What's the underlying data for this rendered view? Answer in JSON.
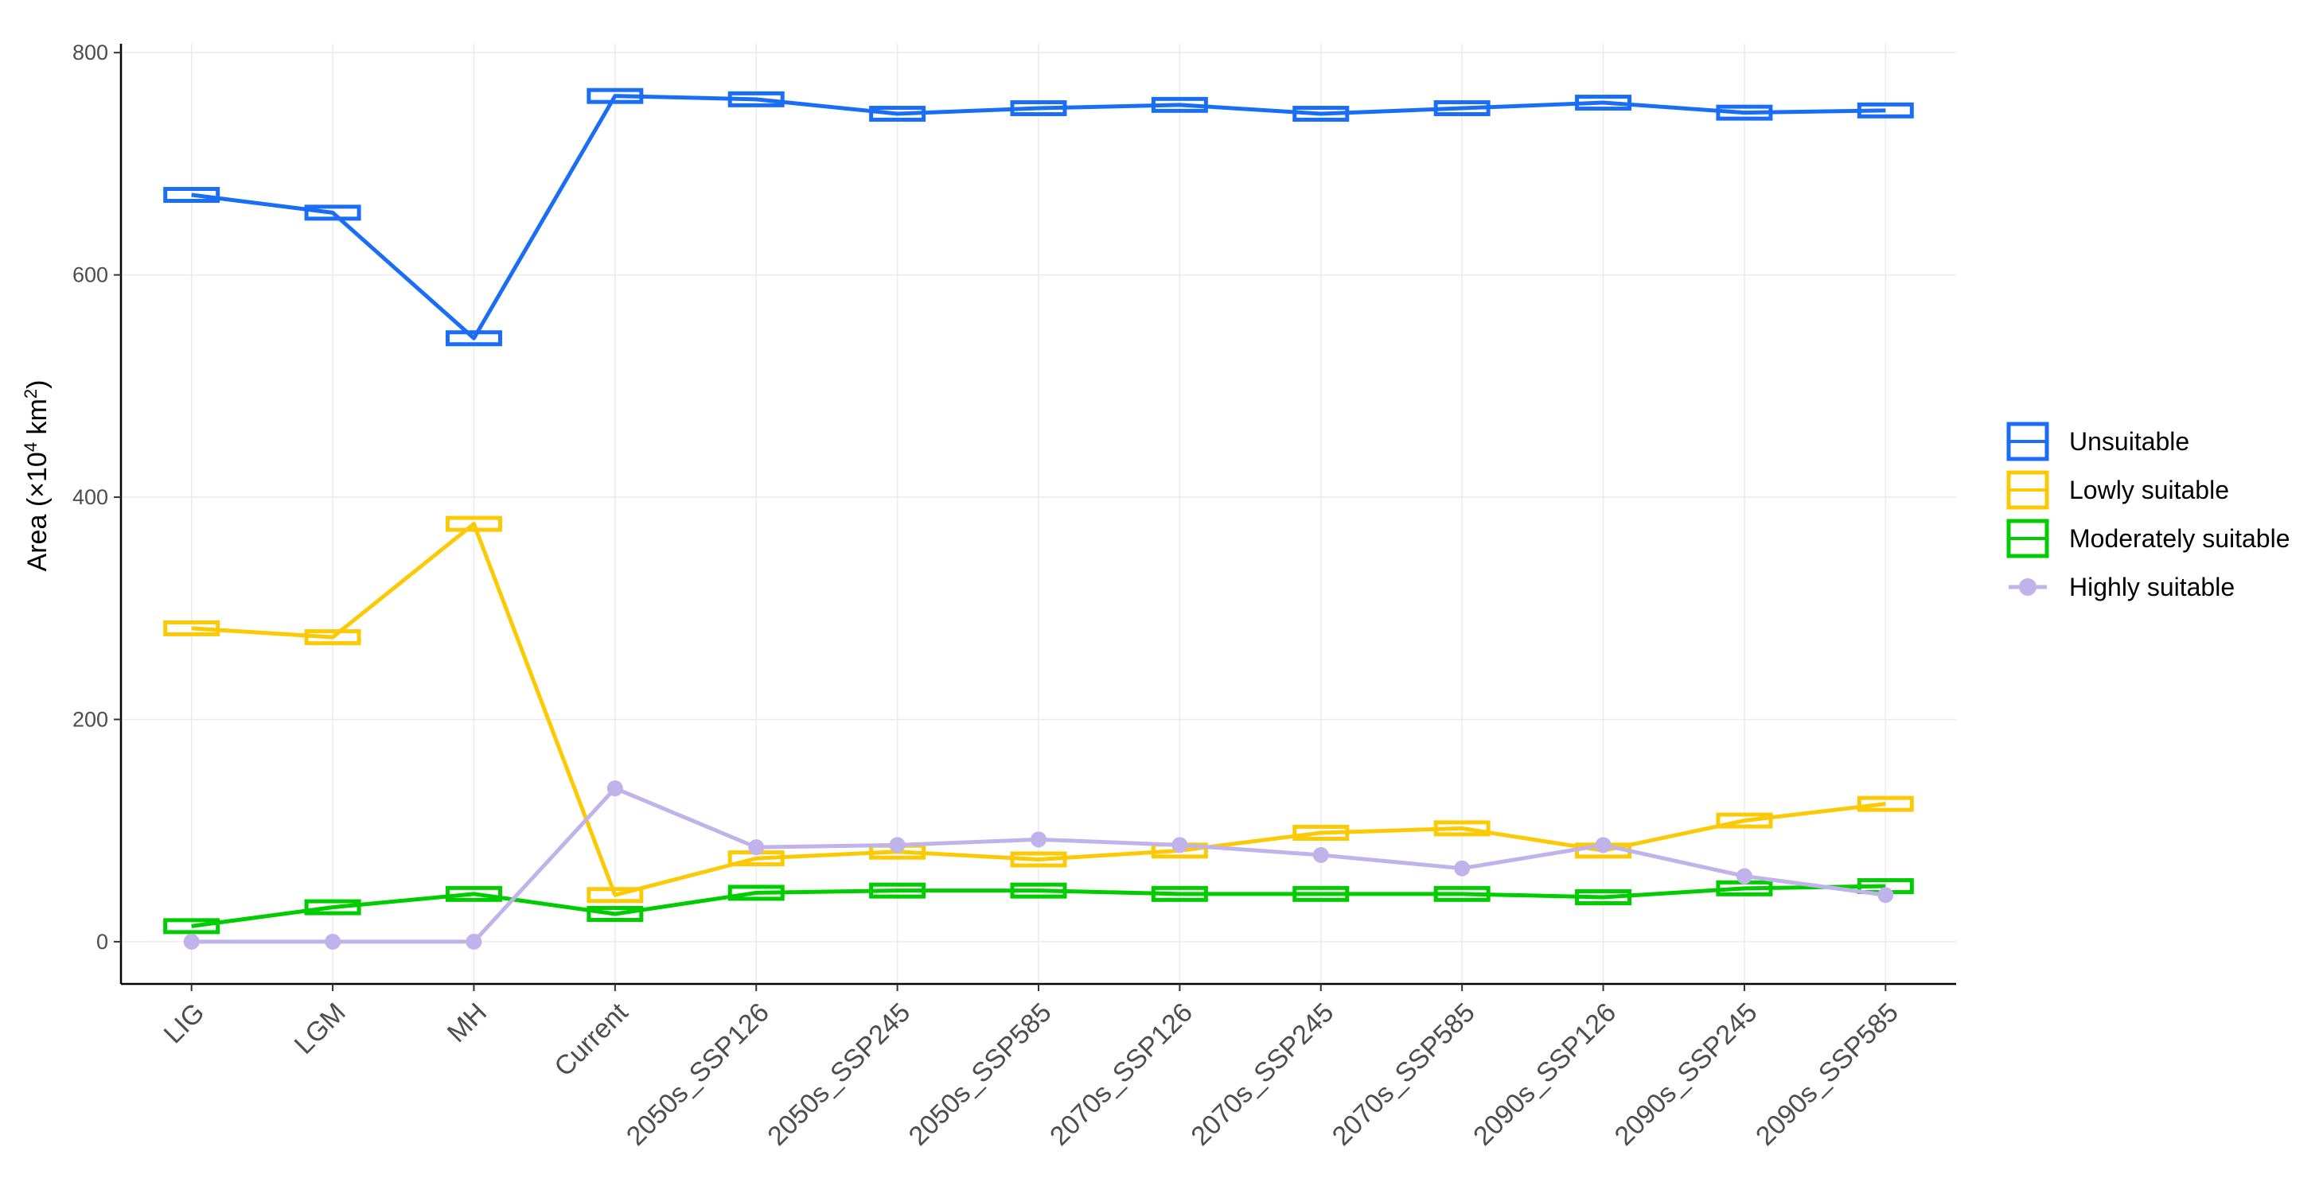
{
  "chart_data": {
    "type": "line",
    "categories": [
      "LIG",
      "LGM",
      "MH",
      "Current",
      "2050s_SSP126",
      "2050s_SSP245",
      "2050s_SSP585",
      "2070s_SSP126",
      "2070s_SSP245",
      "2070s_SSP585",
      "2090s_SSP126",
      "2090s_SSP245",
      "2090s_SSP585"
    ],
    "ylabel": {
      "prefix": "Area (×10",
      "exp1": "4",
      "unit": " km",
      "exp2": "2",
      "suffix": ")"
    },
    "ylim": [
      -38,
      808
    ],
    "yticks": [
      0,
      200,
      400,
      600,
      800
    ],
    "grid": true,
    "legend_position": "right",
    "series": [
      {
        "name": "Unsuitable",
        "color": "#1a6ef5",
        "marker": "box",
        "values": [
          672,
          656,
          543,
          761,
          758,
          745,
          750,
          753,
          745,
          750,
          755,
          746,
          748
        ]
      },
      {
        "name": "Lowly suitable",
        "color": "#fcc905",
        "marker": "box",
        "values": [
          282,
          274,
          376,
          42,
          75,
          81,
          74,
          82,
          98,
          102,
          82,
          109,
          124
        ]
      },
      {
        "name": "Moderately suitable",
        "color": "#00cc00",
        "marker": "box",
        "values": [
          14,
          31,
          43,
          25,
          44,
          46,
          46,
          43,
          43,
          43,
          40,
          48,
          50
        ]
      },
      {
        "name": "Highly suitable",
        "color": "#bfb3ea",
        "marker": "point",
        "values": [
          0,
          0,
          0,
          138,
          85,
          87,
          92,
          87,
          78,
          66,
          87,
          59,
          42
        ]
      }
    ]
  }
}
